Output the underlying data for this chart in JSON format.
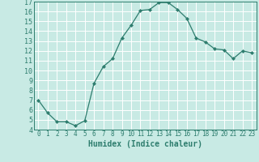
{
  "x": [
    0,
    1,
    2,
    3,
    4,
    5,
    6,
    7,
    8,
    9,
    10,
    11,
    12,
    13,
    14,
    15,
    16,
    17,
    18,
    19,
    20,
    21,
    22,
    23
  ],
  "y": [
    7.0,
    5.7,
    4.8,
    4.8,
    4.4,
    4.9,
    8.7,
    10.4,
    11.2,
    13.3,
    14.6,
    16.1,
    16.2,
    16.9,
    16.9,
    16.2,
    15.3,
    13.3,
    12.9,
    12.2,
    12.1,
    11.2,
    12.0,
    11.8
  ],
  "line_color": "#2e7d6e",
  "marker": "D",
  "marker_size": 2,
  "xlim": [
    -0.5,
    23.5
  ],
  "ylim": [
    4,
    17
  ],
  "yticks": [
    4,
    5,
    6,
    7,
    8,
    9,
    10,
    11,
    12,
    13,
    14,
    15,
    16,
    17
  ],
  "xticks": [
    0,
    1,
    2,
    3,
    4,
    5,
    6,
    7,
    8,
    9,
    10,
    11,
    12,
    13,
    14,
    15,
    16,
    17,
    18,
    19,
    20,
    21,
    22,
    23
  ],
  "xlabel": "Humidex (Indice chaleur)",
  "bg_color": "#c8eae4",
  "grid_color": "#ffffff",
  "tick_color": "#2e7d6e",
  "label_color": "#2e7d6e",
  "xlabel_fontsize": 7,
  "ytick_fontsize": 6,
  "xtick_fontsize": 5.5,
  "linewidth": 0.9
}
